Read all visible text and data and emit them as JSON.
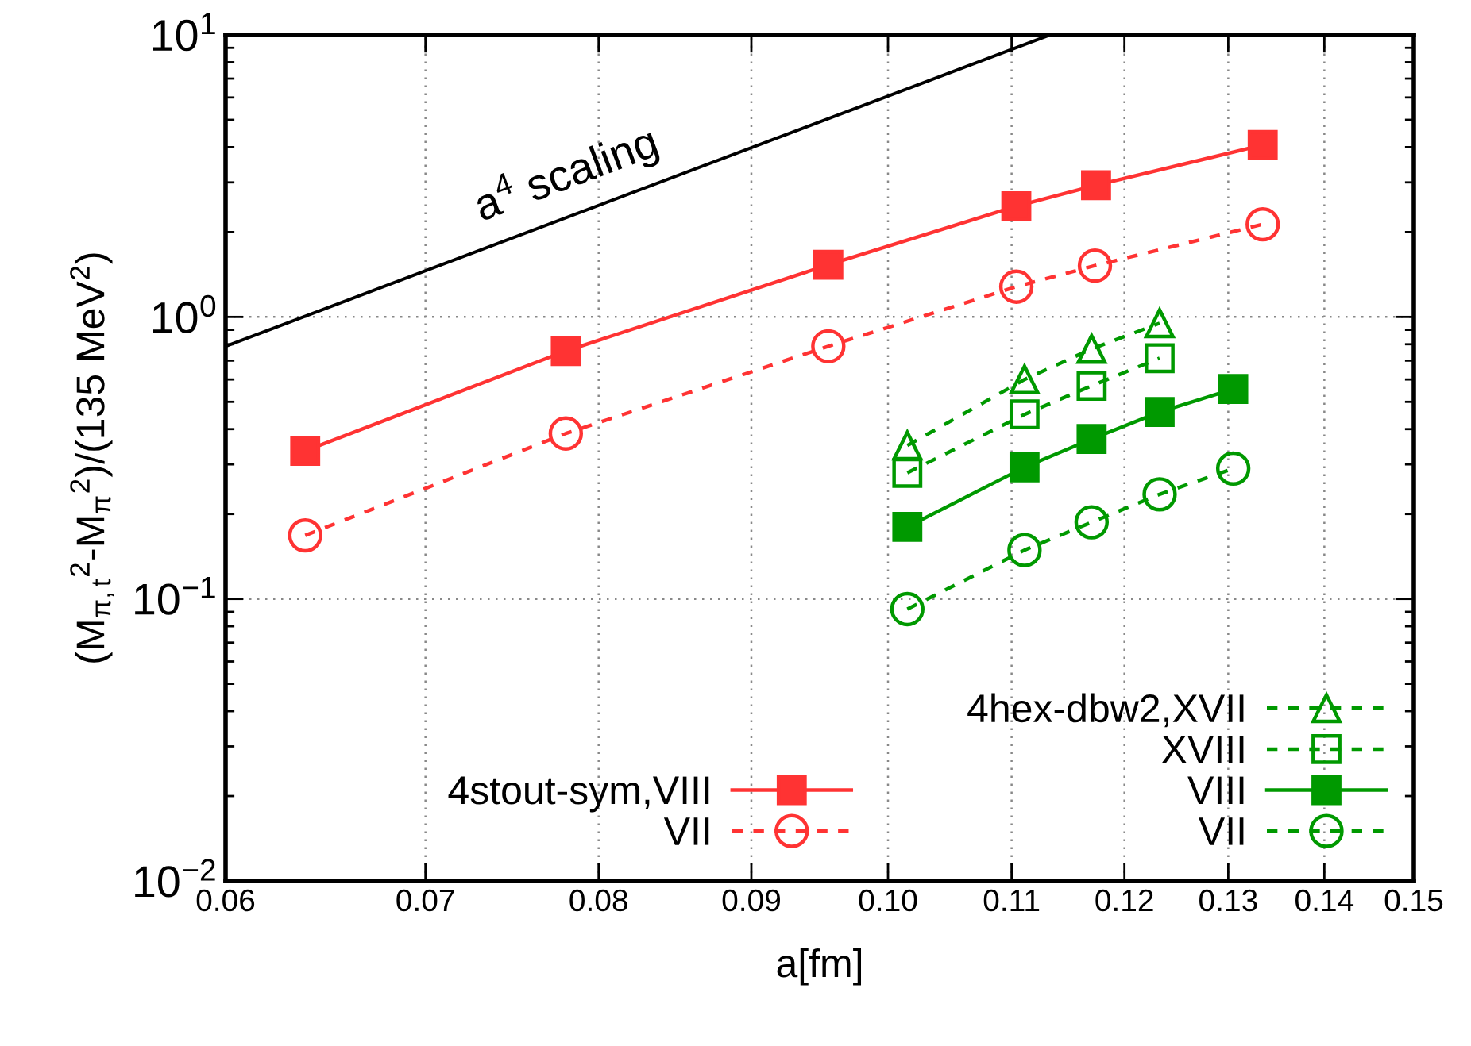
{
  "chart_data": {
    "type": "line",
    "xlabel": "a[fm]",
    "ylabel": "(M$_{π,t}$$^{2}$-M$_{π}$$^{2}$)/(135 MeV$^{2}$)",
    "log": "xy",
    "grid": true,
    "legend": "bottom",
    "xlim": [
      0.06,
      0.15
    ],
    "ylim": [
      0.01,
      10
    ],
    "xticks": [
      {
        "value": 0.06,
        "label": "0.06"
      },
      {
        "value": 0.07,
        "label": "0.07"
      },
      {
        "value": 0.08,
        "label": "0.08"
      },
      {
        "value": 0.09,
        "label": "0.09"
      },
      {
        "value": 0.1,
        "label": "0.10"
      },
      {
        "value": 0.11,
        "label": "0.11"
      },
      {
        "value": 0.12,
        "label": "0.12"
      },
      {
        "value": 0.13,
        "label": "0.13"
      },
      {
        "value": 0.14,
        "label": "0.14"
      },
      {
        "value": 0.15,
        "label": "0.15"
      }
    ],
    "yticks": [
      {
        "value": 0.01,
        "label": "10$^{−2}$"
      },
      {
        "value": 0.1,
        "label": "10$^{−1}$"
      },
      {
        "value": 1,
        "label": "10$^{0}$"
      },
      {
        "value": 10,
        "label": "10$^{1}$"
      }
    ],
    "annotations": [
      "a$^{4}$ scaling"
    ],
    "series": [
      {
        "color": "#000000",
        "x": [
          0.06,
          0.1133
        ],
        "values": [
          0.787,
          10
        ],
        "marker": "none",
        "line_style": "solid"
      },
      {
        "name": "4stout-sym,VIII",
        "color": "#ff3333",
        "x": [
          0.0638,
          0.078,
          0.0955,
          0.1104,
          0.1174,
          0.1335
        ],
        "values": [
          0.335,
          0.757,
          1.53,
          2.47,
          2.93,
          4.07
        ],
        "marker": "square",
        "line_style": "solid"
      },
      {
        "name": "VII",
        "color": "#ff3333",
        "x": [
          0.0638,
          0.078,
          0.0955,
          0.1104,
          0.1173,
          0.1335
        ],
        "values": [
          0.168,
          0.386,
          0.787,
          1.28,
          1.52,
          2.13
        ],
        "marker": "circle-open",
        "line_style": "dashed"
      },
      {
        "name": "4hex-dbw2,XVII",
        "color": "#009900",
        "x": [
          0.1015,
          0.1111,
          0.117,
          0.1233
        ],
        "values": [
          0.35,
          0.6,
          0.77,
          0.95
        ],
        "marker": "triangle-open",
        "line_style": "dashed"
      },
      {
        "name": "XVIII",
        "color": "#009900",
        "x": [
          0.1015,
          0.1111,
          0.117,
          0.1233
        ],
        "values": [
          0.28,
          0.451,
          0.57,
          0.714
        ],
        "marker": "square-open",
        "line_style": "dashed"
      },
      {
        "name": "VIII",
        "color": "#009900",
        "x": [
          0.1015,
          0.1111,
          0.117,
          0.1233,
          0.1305
        ],
        "values": [
          0.18,
          0.293,
          0.369,
          0.46,
          0.555
        ],
        "marker": "square",
        "line_style": "solid"
      },
      {
        "name": "VII",
        "color": "#009900",
        "x": [
          0.1015,
          0.1111,
          0.117,
          0.1233,
          0.1305
        ],
        "values": [
          0.092,
          0.149,
          0.187,
          0.235,
          0.29
        ],
        "marker": "circle-open",
        "line_style": "dashed"
      }
    ]
  }
}
